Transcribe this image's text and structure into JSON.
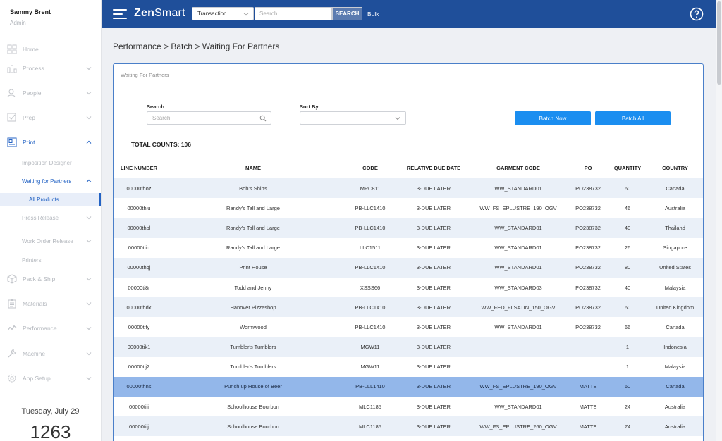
{
  "user": {
    "name": "Sammy Brent",
    "role": "Admin"
  },
  "sidebar": {
    "items": [
      {
        "label": "Home",
        "icon": "home-icon"
      },
      {
        "label": "Process",
        "icon": "process-icon"
      },
      {
        "label": "People",
        "icon": "people-icon"
      },
      {
        "label": "Prep",
        "icon": "prep-icon"
      },
      {
        "label": "Print",
        "icon": "print-icon"
      },
      {
        "label": "Pack & Ship",
        "icon": "box-icon"
      },
      {
        "label": "Materials",
        "icon": "clipboard-icon"
      },
      {
        "label": "Performance",
        "icon": "chart-icon"
      },
      {
        "label": "Machine",
        "icon": "wrench-icon"
      },
      {
        "label": "App Setup",
        "icon": "gear-icon"
      }
    ],
    "print_sub": [
      "Imposition Designer",
      "Waiting for Partners",
      "All Products",
      "Press Release",
      "Work Order Release",
      "Printers"
    ]
  },
  "date": "Tuesday, July 29",
  "clock": "1263",
  "topbar": {
    "logo_bold": "Zen",
    "logo_rest": "Smart",
    "select_value": "Transaction",
    "search_placeholder": "Search",
    "search_button": "SEARCH",
    "bulk": "Bulk"
  },
  "breadcrumb": "Performance > Batch > Waiting For Partners",
  "panel": {
    "title": "Waiting For Partners",
    "search_label": "Search :",
    "search_placeholder": "Search",
    "sort_label": "Sort By :",
    "batch_now": "Batch Now",
    "batch_all": "Batch All",
    "total": "TOTAL COUNTS: 106"
  },
  "table": {
    "headers": [
      "LINE NUMBER",
      "NAME",
      "CODE",
      "RELATIVE DUE DATE",
      "GARMENT CODE",
      "PO",
      "QUANTITY",
      "COUNTRY"
    ],
    "rows": [
      [
        "00000thoz",
        "Bob's Shirts",
        "MPC811",
        "3-DUE LATER",
        "WW_STANDARD01",
        "PO238732",
        "60",
        "Canada"
      ],
      [
        "00000thlu",
        "Randy's Tall and Large",
        "PB-LLC1410",
        "3-DUE LATER",
        "WW_FS_EPLUSTRE_190_OGV",
        "PO238732",
        "46",
        "Australia"
      ],
      [
        "00000thpl",
        "Randy's Tall and Large",
        "PB-LLC1410",
        "3-DUE LATER",
        "WW_STANDARD01",
        "PO238732",
        "40",
        "Thailand"
      ],
      [
        "00000tiiq",
        "Randy's Tall and Large",
        "LLC1511",
        "3-DUE LATER",
        "WW_STANDARD01",
        "PO238732",
        "26",
        "Singapore"
      ],
      [
        "00000thqj",
        "Print House",
        "PB-LLC1410",
        "3-DUE LATER",
        "WW_STANDARD01",
        "PO238732",
        "80",
        "United States"
      ],
      [
        "00000ti8r",
        "Todd and Jenny",
        "XSSS66",
        "3-DUE LATER",
        "WW_STANDARD03",
        "PO238732",
        "40",
        "Malaysia"
      ],
      [
        "00000thdx",
        "Hanover Pizzashop",
        "PB-LLC1410",
        "3-DUE LATER",
        "WW_FED_FLSATIN_150_OGV",
        "PO238732",
        "60",
        "United Kingdom"
      ],
      [
        "00000tify",
        "Wormwood",
        "PB-LLC1410",
        "3-DUE LATER",
        "WW_STANDARD01",
        "PO238732",
        "66",
        "Canada"
      ],
      [
        "00000tik1",
        "Tumbler's Tumblers",
        "MGW11",
        "3-DUE LATER",
        "",
        "",
        "1",
        "Indonesia"
      ],
      [
        "00000tij2",
        "Tumbler's Tumblers",
        "MGW11",
        "3-DUE LATER",
        "",
        "",
        "1",
        "Malaysia"
      ],
      [
        "00000thns",
        "Punch up House of Beer",
        "PB-LLL1410",
        "3-DUE LATER",
        "WW_FS_EPLUSTRE_190_OGV",
        "MATTE",
        "60",
        "Canada"
      ],
      [
        "00000tiii",
        "Schoolhouse Bourbon",
        "MLC1185",
        "3-DUE LATER",
        "WW_STANDARD01",
        "MATTE",
        "24",
        "Australia"
      ],
      [
        "00000tiij",
        "Schoolhouse Bourbon",
        "MLC1185",
        "3-DUE LATER",
        "WW_FS_EPLUSTRE_260_OGV",
        "MATTE",
        "74",
        "Australia"
      ]
    ],
    "highlighted_row": 10
  },
  "colors": {
    "topbar": "#1f4f9a",
    "accent": "#2463c4",
    "button": "#1b8ef0",
    "highlight": "#93b7ea"
  }
}
